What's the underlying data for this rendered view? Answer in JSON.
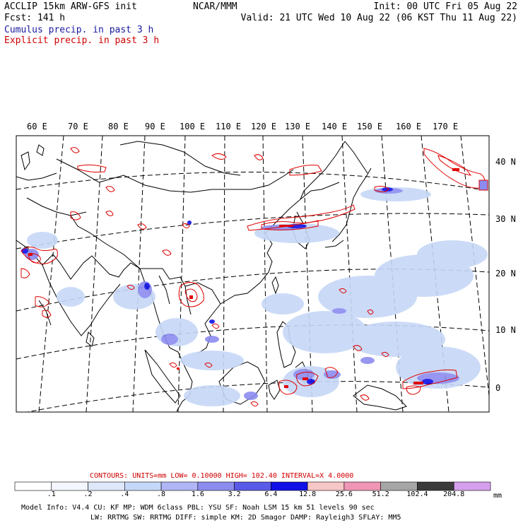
{
  "header": {
    "model": "ACCLIP 15km ARW-GFS init",
    "center": "NCAR/MMM",
    "init": "Init: 00 UTC Fri 05 Aug 22",
    "fcst": "Fcst: 141 h",
    "valid": "Valid: 21 UTC Wed 10 Aug 22 (06 KST Thu 11 Aug 22)",
    "cumulus": "Cumulus precip. in past 3 h",
    "explicit": "Explicit precip. in past 3 h"
  },
  "map": {
    "lon_labels": [
      "60 E",
      "70 E",
      "80 E",
      "90 E",
      "100 E",
      "110 E",
      "120 E",
      "130 E",
      "140 E",
      "150 E",
      "160 E",
      "170 E"
    ],
    "lat_labels": [
      "40 N",
      "30 N",
      "20 N",
      "10 N",
      "0"
    ]
  },
  "contours": {
    "text": "CONTOURS: UNITS=mm LOW= 0.10000 HIGH= 102.40 INTERVAL=X 4.0000"
  },
  "colorbar": {
    "labels": [
      ".1",
      ".2",
      ".4",
      ".8",
      "1.6",
      "3.2",
      "6.4",
      "12.8",
      "25.6",
      "51.2",
      "102.4",
      "204.8"
    ],
    "units": "mm",
    "colors": [
      "#ffffff",
      "#f4f6ff",
      "#dfe8fa",
      "#c6d8f7",
      "#b0b6f5",
      "#8c8cf0",
      "#5a5ae8",
      "#1010e6",
      "#f7c6c6",
      "#f096b6",
      "#a6a6a6",
      "#3a3a3a",
      "#d6a0ee"
    ]
  },
  "footer": {
    "line1": "Model Info: V4.4 CU: KF MP: WDM 6class PBL: YSU SF: Noah LSM 15 km 51 levels 90 sec",
    "line2": "LW: RRTMG SW: RRTMG DIFF: simple KM: 2D Smagor DAMP: Rayleigh3 SFLAY: MM5"
  }
}
